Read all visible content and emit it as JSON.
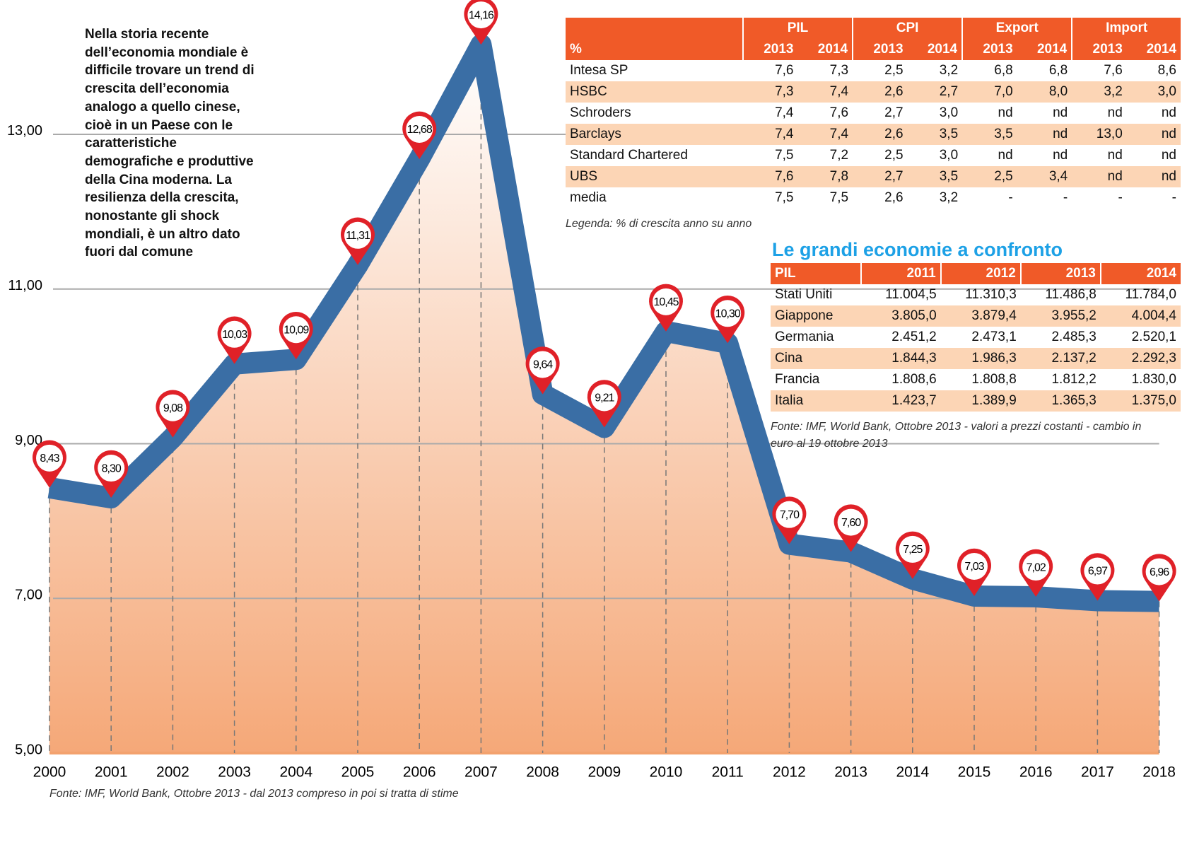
{
  "chart_data": {
    "type": "line",
    "x": [
      "2000",
      "2001",
      "2002",
      "2003",
      "2004",
      "2005",
      "2006",
      "2007",
      "2008",
      "2009",
      "2010",
      "2011",
      "2012",
      "2013",
      "2014",
      "2015",
      "2016",
      "2017",
      "2018"
    ],
    "series": [
      {
        "color": "#3a6ea5",
        "values": [
          8.43,
          8.3,
          9.08,
          10.03,
          10.09,
          11.31,
          12.68,
          14.16,
          9.64,
          9.21,
          10.45,
          10.3,
          7.7,
          7.6,
          7.25,
          7.03,
          7.02,
          6.97,
          6.96
        ],
        "value_labels": [
          "8,43",
          "8,30",
          "9,08",
          "10,03",
          "10,09",
          "11,31",
          "12,68",
          "14,16",
          "9,64",
          "9,21",
          "10,45",
          "10,30",
          "7,70",
          "7,60",
          "7,25",
          "7,03",
          "7,02",
          "6,97",
          "6,96"
        ]
      }
    ],
    "ylim": [
      5,
      14.7
    ],
    "yticks": [
      {
        "value": 5,
        "label": "5,00"
      },
      {
        "value": 7,
        "label": "7,00"
      },
      {
        "value": 9,
        "label": "9,00"
      },
      {
        "value": 11,
        "label": "11,00"
      },
      {
        "value": 13,
        "label": "13,00"
      }
    ],
    "grid": true,
    "annotation": "Nella storia recente dell’economia mondiale è difficile trovare un trend di crescita dell’economia analogo a quello cinese, cioè in un Paese con le caratteristiche demografiche e produttive della Cina moderna. La resilienza della crescita, nonostante gli shock mondiali, è un altro dato fuori dal comune",
    "source": "Fonte: IMF, World Bank, Ottobre 2013 - dal 2013 compreso in poi si tratta di stime"
  },
  "table1": {
    "corner": "%",
    "groups": [
      "PIL",
      "CPI",
      "Export",
      "Import"
    ],
    "years": [
      "2013",
      "2014",
      "2013",
      "2014",
      "2013",
      "2014",
      "2013",
      "2014"
    ],
    "rows": [
      [
        "Intesa SP",
        "7,6",
        "7,3",
        "2,5",
        "3,2",
        "6,8",
        "6,8",
        "7,6",
        "8,6"
      ],
      [
        "HSBC",
        "7,3",
        "7,4",
        "2,6",
        "2,7",
        "7,0",
        "8,0",
        "3,2",
        "3,0"
      ],
      [
        "Schroders",
        "7,4",
        "7,6",
        "2,7",
        "3,0",
        "nd",
        "nd",
        "nd",
        "nd"
      ],
      [
        "Barclays",
        "7,4",
        "7,4",
        "2,6",
        "3,5",
        "3,5",
        "nd",
        "13,0",
        "nd"
      ],
      [
        "Standard Chartered",
        "7,5",
        "7,2",
        "2,5",
        "3,0",
        "nd",
        "nd",
        "nd",
        "nd"
      ],
      [
        "UBS",
        "7,6",
        "7,8",
        "2,7",
        "3,5",
        "2,5",
        "3,4",
        "nd",
        "nd"
      ],
      [
        "media",
        "7,5",
        "7,5",
        "2,6",
        "3,2",
        "-",
        "-",
        "-",
        "-"
      ]
    ],
    "legend": "Legenda: % di crescita anno su anno"
  },
  "table2": {
    "title": "Le grandi economie a confronto",
    "header": [
      "PIL",
      "2011",
      "2012",
      "2013",
      "2014"
    ],
    "rows": [
      [
        "Stati Uniti",
        "11.004,5",
        "11.310,3",
        "11.486,8",
        "11.784,0"
      ],
      [
        "Giappone",
        "3.805,0",
        "3.879,4",
        "3.955,2",
        "4.004,4"
      ],
      [
        "Germania",
        "2.451,2",
        "2.473,1",
        "2.485,3",
        "2.520,1"
      ],
      [
        "Cina",
        "1.844,3",
        "1.986,3",
        "2.137,2",
        "2.292,3"
      ],
      [
        "Francia",
        "1.808,6",
        "1.808,8",
        "1.812,2",
        "1.830,0"
      ],
      [
        "Italia",
        "1.423,7",
        "1.389,9",
        "1.365,3",
        "1.375,0"
      ]
    ],
    "note": "Fonte: IMF, World Bank, Ottobre 2013 - valori a prezzi costanti - cambio in euro al 19 ottobre 2013"
  }
}
